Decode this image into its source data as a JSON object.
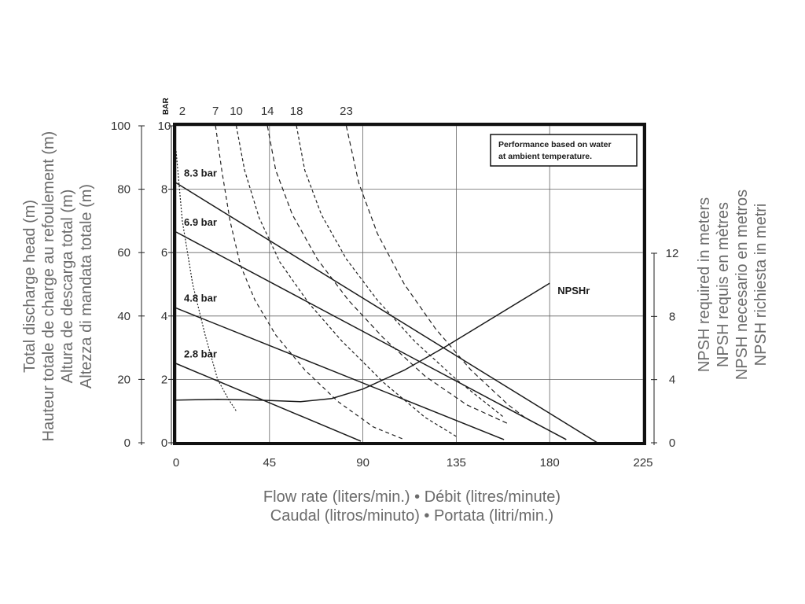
{
  "chart_data": {
    "type": "line",
    "note_lines": [
      "Performance based on water",
      "at ambient temperature."
    ],
    "xlabel_lines": [
      "Flow rate (liters/min.) • Débit (litres/minute)",
      "Caudal (litros/minuto) • Portata (litri/min.)"
    ],
    "ylabel_left_lines": [
      "Total discharge head (m)",
      "Hauteur totale de charge au refoulement (m)",
      "Altura de descarga total (m)",
      "Altezza di mandata totale (m)"
    ],
    "ylabel_right_lines": [
      "NPSH required in meters",
      "NPSH requis en mètres",
      "NPSH necesario en metros",
      "NPSH richiesta in metri"
    ],
    "bar_axis_title": "BAR",
    "xlim": [
      0,
      225
    ],
    "ylim": [
      0,
      100
    ],
    "bar_lim": [
      0,
      10
    ],
    "npsh_lim": [
      0,
      12
    ],
    "x_ticks": [
      "0",
      "45",
      "90",
      "135",
      "180",
      "225"
    ],
    "y_ticks": [
      "0",
      "20",
      "40",
      "60",
      "80",
      "100"
    ],
    "bar_ticks": [
      "0",
      "2",
      "4",
      "6",
      "8",
      "10"
    ],
    "npsh_ticks": [
      "0",
      "4",
      "8",
      "12"
    ],
    "air_consumption_labels": [
      {
        "label": "2",
        "x": 3
      },
      {
        "label": "7",
        "x": 19
      },
      {
        "label": "10",
        "x": 29
      },
      {
        "label": "14",
        "x": 44
      },
      {
        "label": "18",
        "x": 58
      },
      {
        "label": "23",
        "x": 82
      }
    ],
    "series": [
      {
        "name": "8.3 bar",
        "style": "solid",
        "x": [
          0,
          203
        ],
        "y": [
          82,
          0
        ]
      },
      {
        "name": "6.9 bar",
        "style": "solid",
        "x": [
          0,
          188
        ],
        "y": [
          66.5,
          1
        ]
      },
      {
        "name": "4.8 bar",
        "style": "solid",
        "x": [
          0,
          158
        ],
        "y": [
          42.5,
          1
        ]
      },
      {
        "name": "2.8 bar",
        "style": "solid",
        "x": [
          0,
          89
        ],
        "y": [
          25,
          0.5
        ]
      },
      {
        "name": "NPSHr",
        "style": "solid",
        "axis": "npsh",
        "x": [
          0,
          20,
          40,
          60,
          75,
          90,
          110,
          130,
          150,
          170,
          180
        ],
        "y": [
          2.7,
          2.75,
          2.7,
          2.6,
          2.8,
          3.4,
          4.6,
          6.1,
          7.7,
          9.3,
          10.1
        ]
      }
    ],
    "air_curves": [
      {
        "label": "2",
        "x": [
          0,
          3,
          8,
          14,
          20,
          25,
          29
        ],
        "y": [
          92,
          70,
          50,
          34,
          20,
          14,
          10
        ]
      },
      {
        "label": "7",
        "x": [
          19,
          22,
          26,
          31,
          38,
          48,
          62,
          78,
          95,
          110
        ],
        "y": [
          100,
          86,
          70,
          56,
          45,
          34,
          23,
          13,
          5,
          1
        ]
      },
      {
        "label": "10",
        "x": [
          29,
          33,
          40,
          50,
          64,
          80,
          100,
          120,
          135
        ],
        "y": [
          100,
          86,
          71,
          57,
          44,
          32,
          19,
          8,
          2
        ]
      },
      {
        "label": "14",
        "x": [
          44,
          48,
          56,
          68,
          83,
          100,
          120,
          140,
          160
        ],
        "y": [
          100,
          86,
          72,
          58,
          45,
          33,
          21,
          12,
          6
        ]
      },
      {
        "label": "18",
        "x": [
          58,
          62,
          70,
          82,
          97,
          115,
          135,
          158
        ],
        "y": [
          100,
          86,
          72,
          58,
          45,
          32,
          20,
          8
        ]
      },
      {
        "label": "23",
        "x": [
          82,
          88,
          97,
          110,
          125,
          142,
          160,
          168
        ],
        "y": [
          100,
          82,
          66,
          50,
          36,
          23,
          12,
          8
        ]
      }
    ]
  }
}
